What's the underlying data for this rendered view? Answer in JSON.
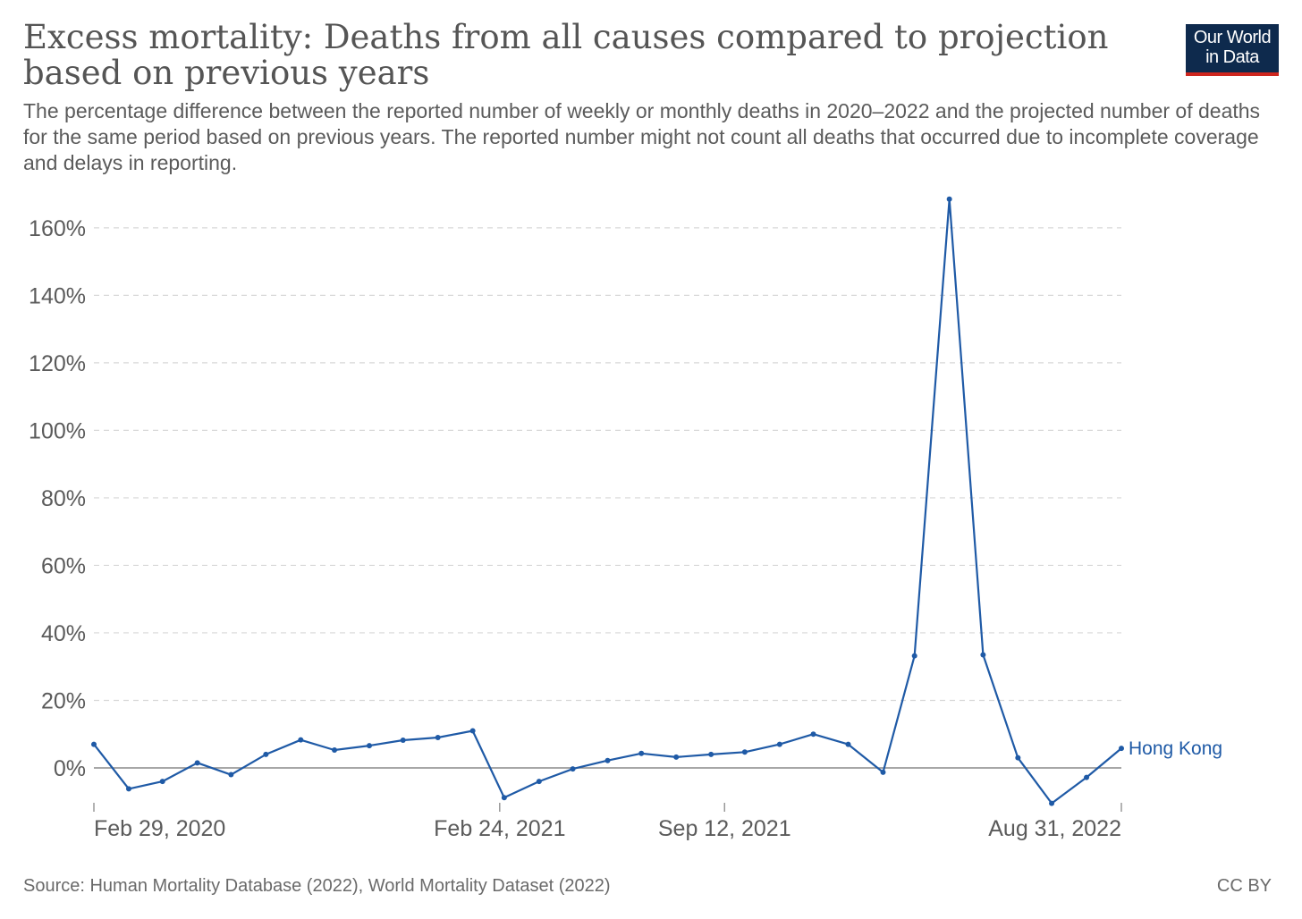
{
  "header": {
    "title": "Excess mortality: Deaths from all causes compared to projection based on previous years",
    "subtitle": "The percentage difference between the reported number of weekly or monthly deaths in 2020–2022 and the projected number of deaths for the same period based on previous years. The reported number might not count all deaths that occurred due to incomplete coverage and delays in reporting.",
    "logo_line1": "Our World",
    "logo_line2": "in Data"
  },
  "footer": {
    "source": "Source: Human Mortality Database (2022), World Mortality Dataset (2022)",
    "license": "CC BY"
  },
  "colors": {
    "series": "#1f5aa6",
    "grid": "#d8d8d8",
    "zero_line": "#8a8a8a",
    "logo_bg": "#0e2a4d",
    "logo_accent": "#ce261e"
  },
  "chart_data": {
    "type": "line",
    "title": "Excess mortality: Deaths from all causes compared to projection based on previous years",
    "xlabel": "",
    "ylabel": "",
    "grid": true,
    "y_ticks": [
      0,
      20,
      40,
      60,
      80,
      100,
      120,
      140,
      160
    ],
    "y_tick_labels": [
      "0%",
      "20%",
      "40%",
      "60%",
      "80%",
      "100%",
      "120%",
      "140%",
      "160%"
    ],
    "ylim": [
      -10,
      168
    ],
    "xlim": [
      "2020-02-29",
      "2022-08-31"
    ],
    "x_ticks": [
      {
        "date": "2020-02-29",
        "label": "Feb 29, 2020"
      },
      {
        "date": "2021-02-24",
        "label": "Feb 24, 2021"
      },
      {
        "date": "2021-09-12",
        "label": "Sep 12, 2021"
      },
      {
        "date": "2022-08-31",
        "label": "Aug 31, 2022"
      }
    ],
    "series": [
      {
        "name": "Hong Kong",
        "points": [
          {
            "x": "2020-02-29",
            "y": 7
          },
          {
            "x": "2020-03-31",
            "y": -6.2
          },
          {
            "x": "2020-04-30",
            "y": -4
          },
          {
            "x": "2020-05-31",
            "y": 1.5
          },
          {
            "x": "2020-06-30",
            "y": -2
          },
          {
            "x": "2020-07-31",
            "y": 4
          },
          {
            "x": "2020-08-31",
            "y": 8.3
          },
          {
            "x": "2020-09-30",
            "y": 5.3
          },
          {
            "x": "2020-10-31",
            "y": 6.6
          },
          {
            "x": "2020-11-30",
            "y": 8.2
          },
          {
            "x": "2020-12-31",
            "y": 9
          },
          {
            "x": "2021-01-31",
            "y": 11
          },
          {
            "x": "2021-02-28",
            "y": -8.8
          },
          {
            "x": "2021-03-31",
            "y": -4
          },
          {
            "x": "2021-04-30",
            "y": -0.3
          },
          {
            "x": "2021-05-31",
            "y": 2.2
          },
          {
            "x": "2021-06-30",
            "y": 4.3
          },
          {
            "x": "2021-07-31",
            "y": 3.2
          },
          {
            "x": "2021-08-31",
            "y": 4
          },
          {
            "x": "2021-09-30",
            "y": 4.7
          },
          {
            "x": "2021-10-31",
            "y": 7
          },
          {
            "x": "2021-11-30",
            "y": 10
          },
          {
            "x": "2021-12-31",
            "y": 7
          },
          {
            "x": "2022-01-31",
            "y": -1.3
          },
          {
            "x": "2022-02-28",
            "y": 33.2
          },
          {
            "x": "2022-03-31",
            "y": 168.5
          },
          {
            "x": "2022-04-30",
            "y": 33.5
          },
          {
            "x": "2022-05-31",
            "y": 3
          },
          {
            "x": "2022-06-30",
            "y": -10.5
          },
          {
            "x": "2022-07-31",
            "y": -2.8
          },
          {
            "x": "2022-08-31",
            "y": 5.8
          }
        ]
      }
    ]
  }
}
